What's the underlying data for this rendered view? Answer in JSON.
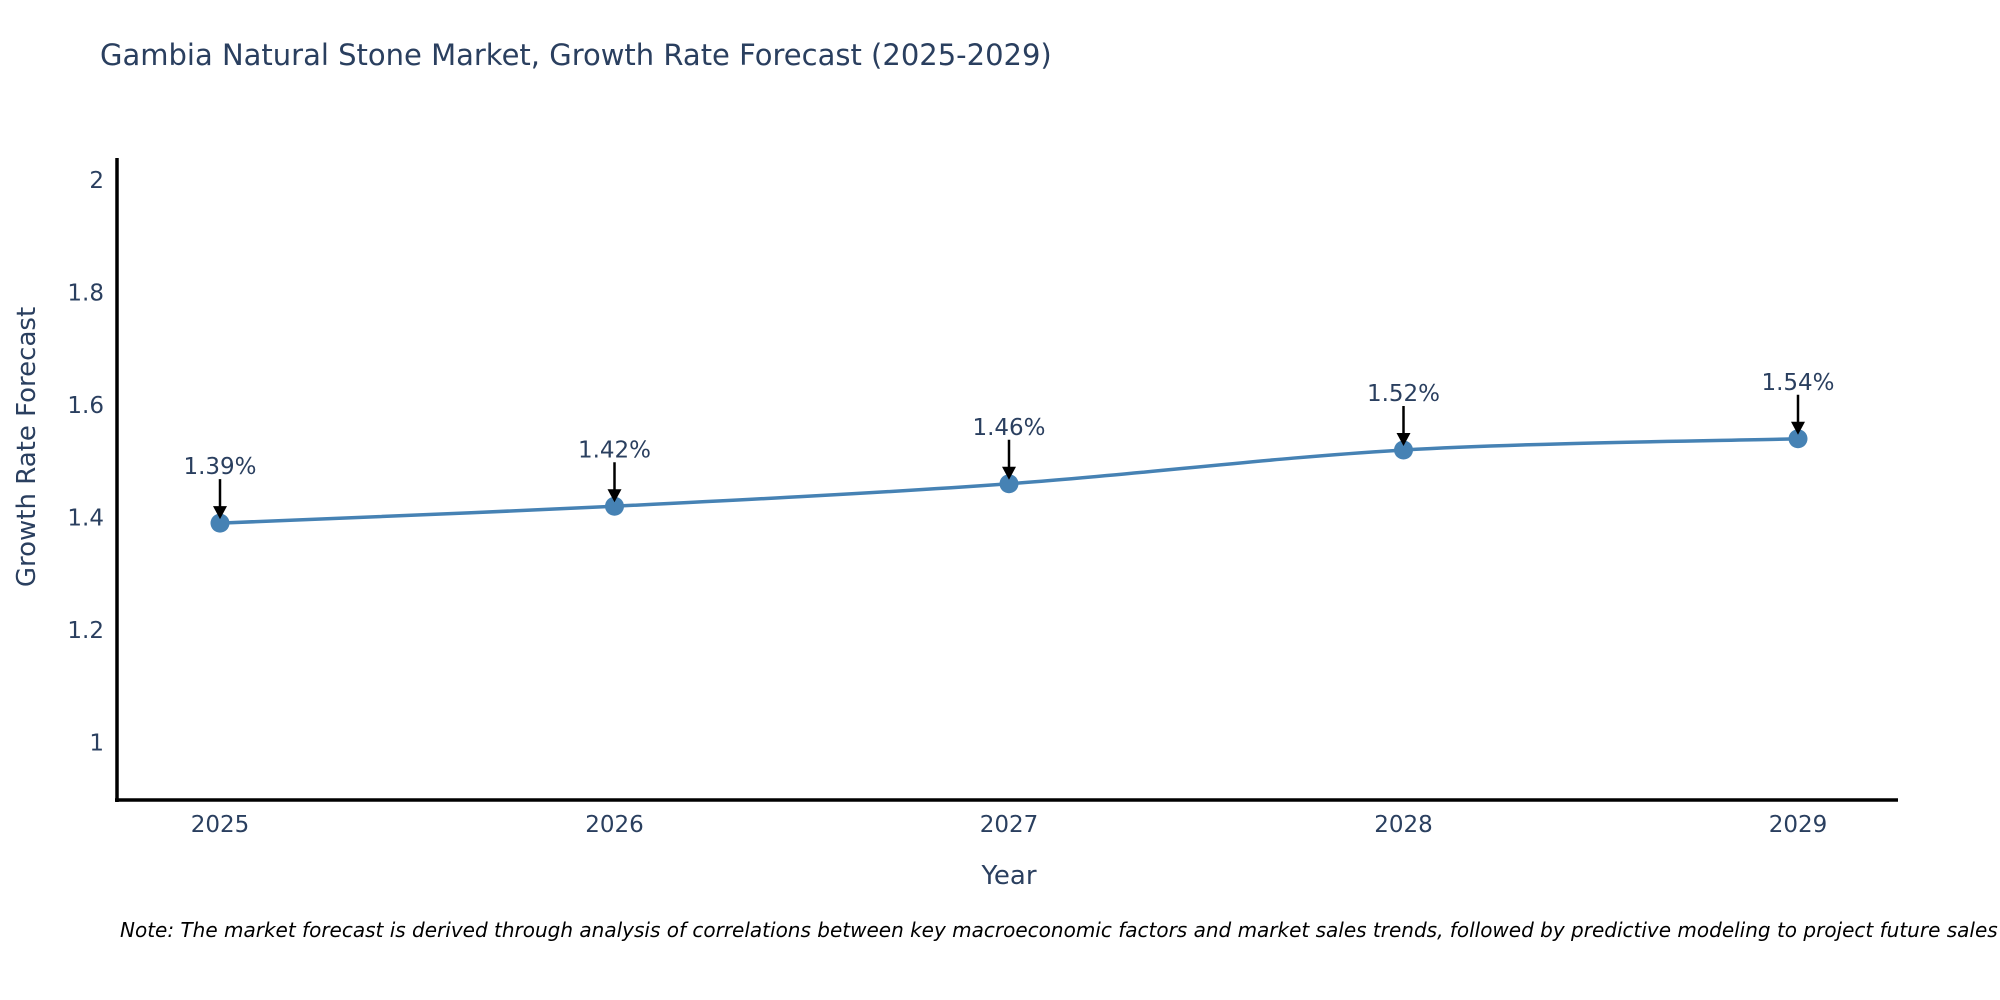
{
  "chart": {
    "title": "Gambia Natural Stone Market, Growth Rate Forecast (2025-2029)",
    "xlabel": "Year",
    "ylabel": "Growth Rate Forecast",
    "note": "Note: The market forecast is derived through analysis of correlations between key macroeconomic factors and market sales trends, followed by predictive modeling to project future sales"
  },
  "chart_data": {
    "type": "line",
    "title": "Gambia Natural Stone Market, Growth Rate Forecast (2025-2029)",
    "xlabel": "Year",
    "ylabel": "Growth Rate Forecast",
    "categories": [
      "2025",
      "2026",
      "2027",
      "2028",
      "2029"
    ],
    "x": [
      2025,
      2026,
      2027,
      2028,
      2029
    ],
    "series": [
      {
        "name": "Growth Rate Forecast",
        "values": [
          1.39,
          1.42,
          1.46,
          1.52,
          1.54
        ],
        "point_labels": [
          "1.39%",
          "1.42%",
          "1.46%",
          "1.52%",
          "1.54%"
        ]
      }
    ],
    "yticks": [
      {
        "value": 2,
        "label": "2"
      },
      {
        "value": 1.8,
        "label": "1.8"
      },
      {
        "value": 1.6,
        "label": "1.6"
      },
      {
        "value": 1.4,
        "label": "1.4"
      },
      {
        "value": 1.2,
        "label": "1.2"
      },
      {
        "value": 1,
        "label": "1"
      }
    ],
    "ylim": [
      0.9,
      2.04
    ],
    "grid": false,
    "legend": "none",
    "line_shape": "spline",
    "annotations": "arrow-down-to-point",
    "colors": {
      "line": "#4682b4",
      "marker": "#4682b4",
      "axis": "#000000",
      "text": "#2a3f5f",
      "arrow": "#000000"
    }
  }
}
